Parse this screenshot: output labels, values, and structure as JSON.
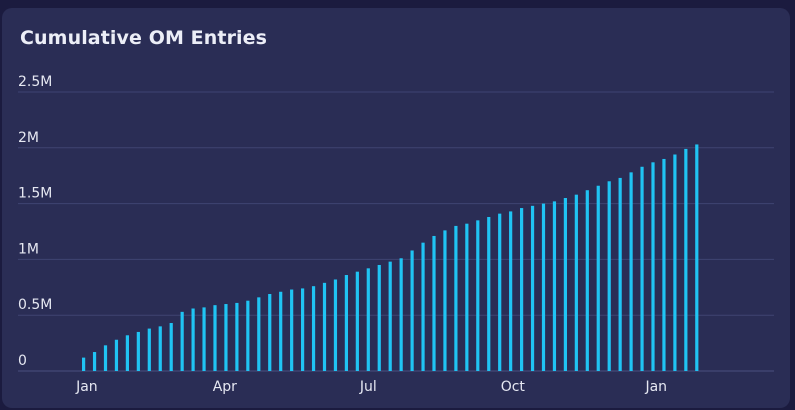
{
  "chart_data": {
    "type": "bar",
    "title": "Cumulative OM Entries",
    "xlabel": "",
    "ylabel": "",
    "ylim": [
      0,
      2500000
    ],
    "y_ticks": [
      {
        "value": 0,
        "label": "0"
      },
      {
        "value": 500000,
        "label": "0.5M"
      },
      {
        "value": 1000000,
        "label": "1M"
      },
      {
        "value": 1500000,
        "label": "1.5M"
      },
      {
        "value": 2000000,
        "label": "2M"
      },
      {
        "value": 2500000,
        "label": "2.5M"
      }
    ],
    "x_ticks": [
      {
        "index": 0.3,
        "label": "Jan"
      },
      {
        "index": 12.9,
        "label": "Apr"
      },
      {
        "index": 26.0,
        "label": "Jul"
      },
      {
        "index": 39.2,
        "label": "Oct"
      },
      {
        "index": 52.3,
        "label": "Jan"
      }
    ],
    "grid": true,
    "bar_color": "#20c4f4",
    "values": [
      120000,
      170000,
      230000,
      280000,
      320000,
      350000,
      380000,
      400000,
      430000,
      530000,
      560000,
      570000,
      590000,
      600000,
      610000,
      630000,
      660000,
      690000,
      710000,
      730000,
      740000,
      760000,
      790000,
      820000,
      860000,
      890000,
      920000,
      950000,
      980000,
      1010000,
      1080000,
      1150000,
      1210000,
      1260000,
      1300000,
      1320000,
      1350000,
      1380000,
      1410000,
      1430000,
      1460000,
      1480000,
      1500000,
      1520000,
      1550000,
      1580000,
      1620000,
      1660000,
      1700000,
      1730000,
      1780000,
      1830000,
      1870000,
      1900000,
      1940000,
      1990000,
      2030000
    ]
  }
}
